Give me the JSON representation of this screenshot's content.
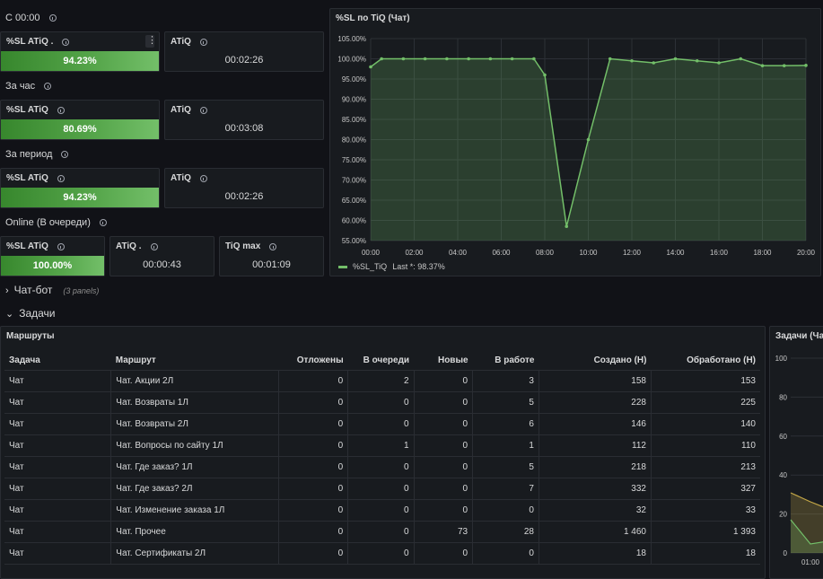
{
  "sections": {
    "since_midnight": "С 00:00",
    "last_hour": "За час",
    "period": "За период",
    "online": "Online (В очереди)"
  },
  "stats": {
    "s00": {
      "sl_title": "%SL ATiQ .",
      "sl_value": "94.23%",
      "atiq_title": "ATiQ",
      "atiq_value": "00:02:26"
    },
    "hour": {
      "sl_title": "%SL ATiQ",
      "sl_value": "80.69%",
      "atiq_title": "ATiQ",
      "atiq_value": "00:03:08"
    },
    "period": {
      "sl_title": "%SL ATiQ",
      "sl_value": "94.23%",
      "atiq_title": "ATiQ",
      "atiq_value": "00:02:26"
    },
    "online": {
      "sl_title": "%SL ATiQ",
      "sl_value": "100.00%",
      "atiq_title": "ATiQ .",
      "atiq_value": "00:00:43",
      "tiqmax_title": "TiQ max",
      "tiqmax_value": "00:01:09"
    }
  },
  "chart_panel": {
    "title": "%SL по TiQ (Чат)",
    "legend_label": "%SL_TiQ",
    "legend_last": "Last *: 98.37%",
    "color": "#73bf69"
  },
  "chart_data": {
    "type": "area",
    "x": [
      "00:00",
      "00:30",
      "01:30",
      "02:30",
      "03:30",
      "04:30",
      "05:30",
      "06:30",
      "07:30",
      "08:00",
      "09:00",
      "10:00",
      "11:00",
      "12:00",
      "13:00",
      "14:00",
      "15:00",
      "16:00",
      "17:00",
      "18:00",
      "19:00",
      "20:00"
    ],
    "series": [
      {
        "name": "%SL_TiQ",
        "values": [
          98.0,
          100.0,
          100.0,
          100.0,
          100.0,
          100.0,
          100.0,
          100.0,
          100.0,
          96.0,
          58.5,
          80.0,
          100.0,
          99.5,
          99.0,
          100.0,
          99.5,
          99.0,
          100.0,
          98.3,
          98.3,
          98.37
        ]
      }
    ],
    "x_ticks": [
      "00:00",
      "02:00",
      "04:00",
      "06:00",
      "08:00",
      "10:00",
      "12:00",
      "14:00",
      "16:00",
      "18:00",
      "20:00"
    ],
    "y_ticks": [
      "105.00%",
      "100.00%",
      "95.00%",
      "90.00%",
      "85.00%",
      "80.00%",
      "75.00%",
      "70.00%",
      "65.00%",
      "60.00%",
      "55.00%"
    ],
    "ylim": [
      55,
      105
    ],
    "grid": true,
    "legend": "bottom-left"
  },
  "rows": {
    "chatbot": {
      "title": "Чат-бот",
      "sub": "(3 panels)",
      "chevron": "›"
    },
    "tasks": {
      "title": "Задачи",
      "chevron": "⌄"
    }
  },
  "routes": {
    "title": "Маршруты",
    "headers": [
      "Задача",
      "Маршрут",
      "Отложены",
      "В очереди",
      "Новые",
      "В работе",
      "Создано (Н)",
      "Обработано (Н)"
    ],
    "rows": [
      [
        "Чат",
        "Чат. Акции 2Л",
        "0",
        "2",
        "0",
        "3",
        "158",
        "153"
      ],
      [
        "Чат",
        "Чат. Возвраты 1Л",
        "0",
        "0",
        "0",
        "5",
        "228",
        "225"
      ],
      [
        "Чат",
        "Чат. Возвраты 2Л",
        "0",
        "0",
        "0",
        "6",
        "146",
        "140"
      ],
      [
        "Чат",
        "Чат. Вопросы по сайту 1Л",
        "0",
        "1",
        "0",
        "1",
        "112",
        "110"
      ],
      [
        "Чат",
        "Чат. Где заказ? 1Л",
        "0",
        "0",
        "0",
        "5",
        "218",
        "213"
      ],
      [
        "Чат",
        "Чат. Где заказ? 2Л",
        "0",
        "0",
        "0",
        "7",
        "332",
        "327"
      ],
      [
        "Чат",
        "Чат. Изменение заказа 1Л",
        "0",
        "0",
        "0",
        "0",
        "32",
        "33"
      ],
      [
        "Чат",
        "Чат. Прочее",
        "0",
        "0",
        "73",
        "28",
        "1 460",
        "1 393"
      ],
      [
        "Чат",
        "Чат. Сертификаты 2Л",
        "0",
        "0",
        "0",
        "0",
        "18",
        "18"
      ]
    ]
  },
  "tasks_panel": {
    "title": "Задачи (Чат",
    "y_ticks": [
      "100",
      "80",
      "60",
      "40",
      "20",
      "0"
    ],
    "x_tick": "01:00"
  }
}
